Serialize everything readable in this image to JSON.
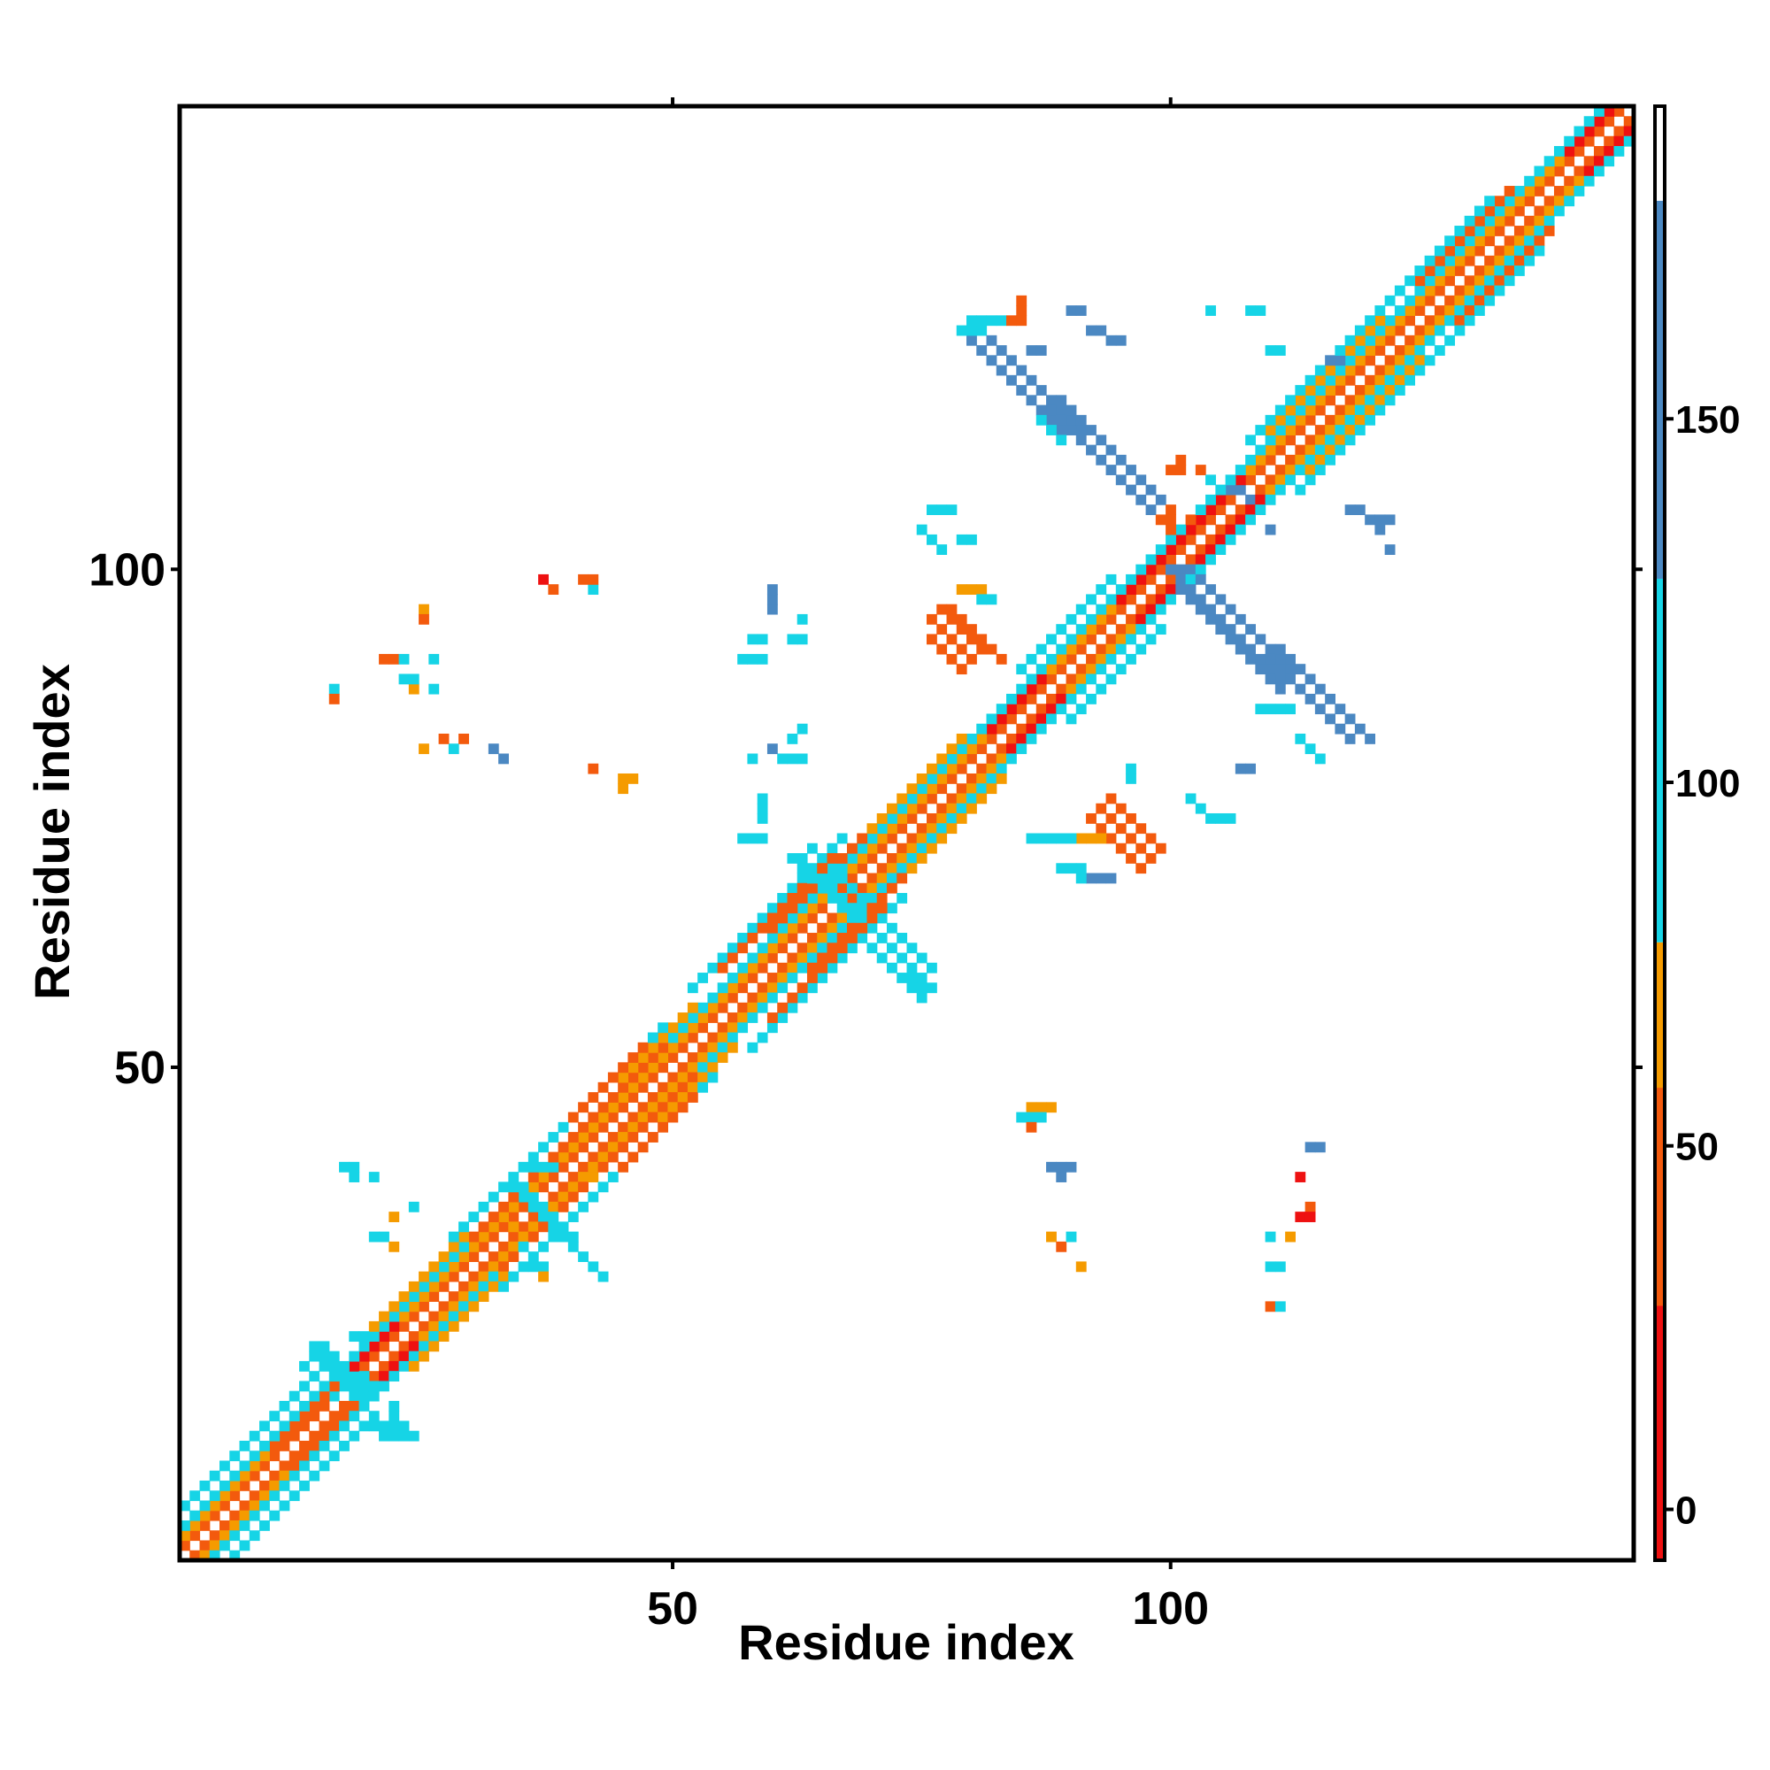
{
  "chart_data": {
    "type": "heatmap",
    "title": "",
    "xlabel": "Residue index",
    "ylabel": "Residue index",
    "xlim": [
      1,
      146
    ],
    "ylim": [
      1,
      146
    ],
    "x_ticks": [
      50,
      100
    ],
    "y_ticks": [
      50,
      100
    ],
    "colorbar": {
      "ticks": [
        0,
        50,
        100,
        150
      ],
      "range": [
        -7,
        193
      ],
      "bands": [
        {
          "from": -7,
          "to": 28,
          "color": "#ee1111"
        },
        {
          "from": 28,
          "to": 58,
          "color": "#f35a0d"
        },
        {
          "from": 58,
          "to": 78,
          "color": "#f59b00"
        },
        {
          "from": 78,
          "to": 128,
          "color": "#16d4e6"
        },
        {
          "from": 128,
          "to": 180,
          "color": "#4b88c2"
        },
        {
          "from": 180,
          "to": 193,
          "color": "#ffffff"
        }
      ]
    },
    "cells_note": "contact map: [start_i, start_j, length, dir, class] runs; dir d=diagonal (i+k,j+k), a=anti-diagonal (i+k,j-k), h=horizontal (i+k,j), v=vertical (i,j+k); class 0=red(<28),1=orange-red(28-58),2=orange(58-78),3=cyan(78-128),4=steel blue(128-180)",
    "cells": [
      [
        1,
        2,
        145,
        "d",
        1
      ],
      [
        2,
        1,
        145,
        "d",
        1
      ],
      [
        1,
        3,
        144,
        "d",
        2
      ],
      [
        3,
        1,
        144,
        "d",
        2
      ],
      [
        1,
        4,
        143,
        "d",
        3
      ],
      [
        4,
        1,
        143,
        "d",
        3
      ],
      [
        15,
        17,
        8,
        "d",
        0
      ],
      [
        17,
        15,
        8,
        "d",
        0
      ],
      [
        95,
        97,
        10,
        "d",
        0
      ],
      [
        97,
        95,
        10,
        "d",
        0
      ],
      [
        82,
        84,
        6,
        "d",
        0
      ],
      [
        84,
        82,
        6,
        "d",
        0
      ],
      [
        140,
        142,
        5,
        "d",
        0
      ],
      [
        142,
        140,
        5,
        "d",
        0
      ],
      [
        102,
        104,
        6,
        "d",
        0
      ],
      [
        104,
        102,
        6,
        "d",
        0
      ],
      [
        10,
        12,
        8,
        "d",
        1
      ],
      [
        12,
        10,
        8,
        "d",
        1
      ],
      [
        30,
        33,
        20,
        "d",
        1
      ],
      [
        33,
        30,
        20,
        "d",
        1
      ],
      [
        60,
        64,
        10,
        "d",
        1
      ],
      [
        64,
        60,
        10,
        "d",
        1
      ],
      [
        20,
        24,
        10,
        "d",
        2
      ],
      [
        24,
        20,
        10,
        "d",
        2
      ],
      [
        45,
        49,
        8,
        "d",
        2
      ],
      [
        49,
        45,
        8,
        "d",
        2
      ],
      [
        70,
        74,
        10,
        "d",
        2
      ],
      [
        74,
        70,
        10,
        "d",
        2
      ],
      [
        110,
        114,
        12,
        "d",
        2
      ],
      [
        114,
        110,
        12,
        "d",
        2
      ],
      [
        125,
        129,
        10,
        "d",
        1
      ],
      [
        129,
        125,
        10,
        "d",
        1
      ],
      [
        1,
        6,
        15,
        "d",
        3
      ],
      [
        6,
        1,
        15,
        "d",
        3
      ],
      [
        28,
        33,
        22,
        "d",
        3
      ],
      [
        33,
        28,
        22,
        "d",
        3
      ],
      [
        52,
        58,
        16,
        "d",
        3
      ],
      [
        58,
        52,
        16,
        "d",
        3
      ],
      [
        85,
        90,
        10,
        "d",
        3
      ],
      [
        90,
        85,
        10,
        "d",
        3
      ],
      [
        108,
        113,
        25,
        "d",
        3
      ],
      [
        113,
        108,
        25,
        "d",
        3
      ],
      [
        55,
        60,
        12,
        "d",
        1
      ],
      [
        60,
        55,
        12,
        "d",
        1
      ],
      [
        40,
        45,
        8,
        "d",
        1
      ],
      [
        45,
        40,
        8,
        "d",
        1
      ],
      [
        14,
        22,
        6,
        "a",
        3
      ],
      [
        14,
        21,
        6,
        "a",
        3
      ],
      [
        15,
        22,
        6,
        "a",
        3
      ],
      [
        13,
        20,
        4,
        "a",
        3
      ],
      [
        20,
        14,
        4,
        "h",
        3
      ],
      [
        21,
        13,
        4,
        "h",
        3
      ],
      [
        16,
        19,
        4,
        "h",
        3
      ],
      [
        17,
        18,
        4,
        "h",
        3
      ],
      [
        18,
        23,
        3,
        "h",
        3
      ],
      [
        22,
        14,
        3,
        "v",
        3
      ],
      [
        34,
        38,
        6,
        "a",
        3
      ],
      [
        35,
        38,
        6,
        "a",
        3
      ],
      [
        39,
        33,
        4,
        "a",
        3
      ],
      [
        40,
        32,
        4,
        "a",
        3
      ],
      [
        36,
        40,
        3,
        "h",
        3
      ],
      [
        62,
        71,
        7,
        "a",
        3
      ],
      [
        63,
        71,
        7,
        "a",
        3
      ],
      [
        64,
        72,
        6,
        "a",
        3
      ],
      [
        70,
        62,
        6,
        "a",
        3
      ],
      [
        71,
        63,
        6,
        "a",
        3
      ],
      [
        72,
        64,
        5,
        "a",
        3
      ],
      [
        59,
        75,
        3,
        "v",
        3
      ],
      [
        57,
        73,
        3,
        "h",
        3
      ],
      [
        73,
        59,
        3,
        "h",
        3
      ],
      [
        75,
        57,
        3,
        "v",
        3
      ],
      [
        80,
        123,
        10,
        "a",
        4
      ],
      [
        81,
        124,
        10,
        "a",
        4
      ],
      [
        82,
        123,
        10,
        "a",
        4
      ],
      [
        79,
        124,
        3,
        "h",
        3
      ],
      [
        80,
        125,
        4,
        "h",
        3
      ],
      [
        88,
        116,
        11,
        "a",
        4
      ],
      [
        89,
        117,
        11,
        "a",
        4
      ],
      [
        90,
        116,
        11,
        "a",
        4
      ],
      [
        87,
        115,
        3,
        "a",
        3
      ],
      [
        101,
        99,
        11,
        "a",
        4
      ],
      [
        102,
        100,
        11,
        "a",
        4
      ],
      [
        101,
        98,
        11,
        "a",
        4
      ],
      [
        100,
        100,
        3,
        "h",
        4
      ],
      [
        110,
        91,
        9,
        "a",
        4
      ],
      [
        111,
        92,
        9,
        "a",
        4
      ],
      [
        112,
        91,
        9,
        "a",
        4
      ],
      [
        113,
        83,
        3,
        "a",
        3
      ],
      [
        109,
        86,
        4,
        "h",
        3
      ],
      [
        76,
        95,
        5,
        "a",
        1
      ],
      [
        77,
        96,
        5,
        "a",
        1
      ],
      [
        78,
        96,
        6,
        "a",
        1
      ],
      [
        76,
        93,
        4,
        "a",
        1
      ],
      [
        79,
        98,
        3,
        "h",
        2
      ],
      [
        81,
        97,
        2,
        "h",
        3
      ],
      [
        92,
        75,
        6,
        "a",
        1
      ],
      [
        93,
        76,
        6,
        "a",
        1
      ],
      [
        94,
        77,
        6,
        "a",
        1
      ],
      [
        91,
        73,
        3,
        "h",
        2
      ],
      [
        96,
        79,
        2,
        "v",
        3
      ],
      [
        75,
        104,
        3,
        "a",
        3
      ],
      [
        76,
        106,
        3,
        "h",
        3
      ],
      [
        79,
        103,
        2,
        "h",
        3
      ],
      [
        102,
        77,
        3,
        "a",
        3
      ],
      [
        104,
        75,
        3,
        "h",
        3
      ],
      [
        107,
        80,
        2,
        "h",
        4
      ],
      [
        60,
        96,
        3,
        "v",
        4
      ],
      [
        58,
        93,
        2,
        "h",
        3
      ],
      [
        62,
        93,
        2,
        "h",
        3
      ],
      [
        63,
        95,
        1,
        "h",
        3
      ],
      [
        57,
        91,
        3,
        "h",
        3
      ],
      [
        84,
        125,
        2,
        "h",
        1
      ],
      [
        85,
        126,
        2,
        "v",
        1
      ],
      [
        86,
        122,
        2,
        "h",
        4
      ],
      [
        90,
        126,
        2,
        "h",
        4
      ],
      [
        92,
        124,
        2,
        "h",
        4
      ],
      [
        94,
        123,
        2,
        "h",
        4
      ],
      [
        118,
        106,
        2,
        "h",
        4
      ],
      [
        120,
        105,
        3,
        "h",
        4
      ],
      [
        121,
        104,
        2,
        "v",
        4
      ],
      [
        122,
        102,
        1,
        "h",
        4
      ],
      [
        104,
        126,
        1,
        "h",
        3
      ],
      [
        108,
        126,
        2,
        "h",
        3
      ],
      [
        110,
        122,
        2,
        "h",
        3
      ],
      [
        116,
        121,
        2,
        "h",
        4
      ],
      [
        86,
        73,
        3,
        "h",
        3
      ],
      [
        89,
        70,
        3,
        "h",
        3
      ],
      [
        89,
        73,
        2,
        "h",
        3
      ],
      [
        92,
        69,
        3,
        "h",
        4
      ],
      [
        91,
        69,
        2,
        "v",
        3
      ],
      [
        86,
        46,
        3,
        "h",
        2
      ],
      [
        85,
        45,
        3,
        "h",
        3
      ],
      [
        86,
        44,
        1,
        "h",
        1
      ],
      [
        88,
        40,
        3,
        "h",
        4
      ],
      [
        89,
        39,
        1,
        "h",
        4
      ],
      [
        88,
        33,
        1,
        "h",
        2
      ],
      [
        89,
        32,
        1,
        "h",
        1
      ],
      [
        90,
        33,
        1,
        "h",
        3
      ],
      [
        91,
        30,
        1,
        "h",
        2
      ],
      [
        110,
        33,
        1,
        "h",
        3
      ],
      [
        112,
        33,
        1,
        "h",
        2
      ],
      [
        110,
        30,
        2,
        "h",
        3
      ],
      [
        110,
        26,
        1,
        "h",
        1
      ],
      [
        111,
        26,
        1,
        "h",
        3
      ],
      [
        114,
        36,
        1,
        "h",
        1
      ],
      [
        113,
        35,
        2,
        "h",
        0
      ],
      [
        114,
        42,
        2,
        "h",
        4
      ],
      [
        113,
        39,
        1,
        "h",
        0
      ],
      [
        35,
        32,
        1,
        "h",
        3
      ],
      [
        36,
        30,
        2,
        "h",
        3
      ],
      [
        37,
        29,
        1,
        "h",
        2
      ],
      [
        34,
        34,
        1,
        "h",
        2
      ],
      [
        17,
        40,
        2,
        "h",
        3
      ],
      [
        18,
        39,
        1,
        "h",
        3
      ],
      [
        20,
        39,
        1,
        "h",
        3
      ],
      [
        24,
        36,
        1,
        "h",
        3
      ],
      [
        22,
        35,
        1,
        "h",
        2
      ],
      [
        20,
        33,
        2,
        "h",
        3
      ],
      [
        22,
        32,
        1,
        "h",
        2
      ],
      [
        38,
        40,
        1,
        "h",
        3
      ],
      [
        41,
        39,
        2,
        "h",
        2
      ],
      [
        21,
        91,
        2,
        "h",
        1
      ],
      [
        23,
        91,
        1,
        "h",
        3
      ],
      [
        24,
        88,
        1,
        "h",
        2
      ],
      [
        23,
        89,
        2,
        "h",
        3
      ],
      [
        16,
        88,
        1,
        "h",
        3
      ],
      [
        16,
        87,
        1,
        "h",
        1
      ],
      [
        26,
        91,
        1,
        "h",
        3
      ],
      [
        26,
        88,
        1,
        "h",
        3
      ],
      [
        25,
        96,
        1,
        "h",
        2
      ],
      [
        25,
        95,
        1,
        "h",
        1
      ],
      [
        41,
        99,
        1,
        "h",
        3
      ],
      [
        42,
        98,
        1,
        "h",
        3
      ],
      [
        37,
        99,
        1,
        "h",
        0
      ],
      [
        41,
        99,
        2,
        "h",
        1
      ],
      [
        38,
        98,
        1,
        "h",
        1
      ],
      [
        25,
        82,
        1,
        "h",
        2
      ],
      [
        28,
        82,
        1,
        "h",
        3
      ],
      [
        27,
        83,
        1,
        "h",
        1
      ],
      [
        29,
        83,
        1,
        "h",
        1
      ],
      [
        32,
        82,
        1,
        "h",
        4
      ],
      [
        33,
        81,
        1,
        "h",
        4
      ],
      [
        42,
        80,
        1,
        "h",
        1
      ],
      [
        45,
        79,
        2,
        "h",
        2
      ],
      [
        45,
        78,
        1,
        "h",
        2
      ],
      [
        58,
        81,
        1,
        "h",
        3
      ],
      [
        61,
        81,
        2,
        "h",
        3
      ],
      [
        63,
        81,
        1,
        "h",
        3
      ],
      [
        60,
        82,
        1,
        "h",
        4
      ],
      [
        62,
        83,
        1,
        "h",
        3
      ],
      [
        63,
        84,
        1,
        "h",
        3
      ],
      [
        99,
        105,
        2,
        "h",
        1
      ],
      [
        100,
        104,
        1,
        "h",
        1
      ],
      [
        100,
        106,
        1,
        "h",
        1
      ],
      [
        102,
        105,
        1,
        "h",
        1
      ],
      [
        100,
        110,
        2,
        "h",
        1
      ],
      [
        101,
        111,
        1,
        "h",
        1
      ],
      [
        103,
        110,
        1,
        "h",
        1
      ],
      [
        104,
        109,
        1,
        "h",
        3
      ],
      [
        106,
        109,
        1,
        "h",
        3
      ],
      [
        106,
        108,
        2,
        "h",
        4
      ],
      [
        108,
        107,
        1,
        "h",
        4
      ],
      [
        110,
        104,
        1,
        "h",
        4
      ]
    ]
  }
}
